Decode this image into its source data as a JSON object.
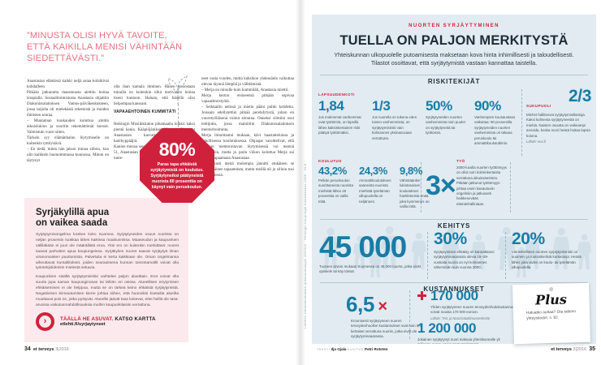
{
  "colors": {
    "accent_red": "#d0213c",
    "accent_teal": "#187ca6",
    "panel_blue": "#e1ebf1",
    "pink_box": "#fbe9ed"
  },
  "left_page": {
    "quote": "”MINUSTA OLISI HYVÄ TAVOITE, ETTÄ KAIKILLA MENISI VÄHINTÄÄN SIEDETTÄVÄSTI.”",
    "columns": {
      "col1": "Anastasian elämässä kaikki neljä asiaa kolahtivat kohdalleen.\n   Pitkään jatkunutta masennusta alettiin hoitaa terapialla. Sosiaalitoimistosta Anastasia ohjattiin Diakonissalaitoksen Vamos-päiväkeskukseen, jossa tarjolla oli mielekästä tekemistä ja muiden ihmisten seuraa.\n   – Muutaman kuukauden kuluttua aloitin aikuislukion ja suoritin tekemättömät kurssit. Valmistuin vuosi sitten.\n   Tärkein syy elämänhalun löytymiselle on kuitenkin tyttöystävä.\n   – En tiedä, miten hän jaksoi minua silloin, kun olin kaikkein huonoimmassa kunnossa. Minun on täytynyt",
      "col2_pre": "olla ihan kamala ihminen. Hänen ansiostaan minulla on kuitenkin ollut motivaatio hoitaa itseni kuntoon. Haluan, että hänellä olisi helpompaa kanssani.",
      "col2_heading": "VAPAAEHTOINEN KUMMITÄTI",
      "col2_post": "Helsingin Musiikkitalon pihamaalla loikkii kaksi pientä kania. Kääpiöjänikset Virna ja Pio ovat Anastasian kasvattamia perhottomia kanihyppääjiä.\n   Kanien menoa seuraa hymyillen Merja Könönen, 51, Anastasian mentori. Merja ja Anastasia ovat tunte-",
      "col3": "neet vasta vuoden, mutta kaksikon yhdessäolo vaikuttaa olevan täynnä lämpöä ja välittämistä.\n   – Merja on minulle kuin kummitäti, Anastasia miettii.\n   Merja kertoo etsineensä pitkään sopivaa vapaaehtoistyötä.\n   – Seikkailin netissä ja mietin pääni puhki kohdetta. Joissain edellytettiin pitkää perehdytystä, johon en vuorotyöläisenä voinut sitoutua. Onneksi silmiini osui lehtijuttu, jossa mainittiin Diakonissalaitoksen mentoritoiminta.\n   Merja ilmoittautui mukaan, kävi haastatteluissa ja pakollisessa koulutuksessa. Ohjaajat varoittelivat, että sopivan mentoroitavan löytymisessä voi mennä pitkäänkin, mutta jo parin viikon kuluttua Merja sai kutsun tapaamaan Anastasiaa.\n   – Varmasti meitä molempia jännitti etukäteen se ensimmäinen tapaaminen, mutta meillä oli jo silloin tosi kiva yhdessä."
    },
    "badge": {
      "value": "80%",
      "text": "Paras tapa ehkäistä syrjäytymistä on koulutus. Syrjäytyneiksi päätyneistä nuorista 80 prosenttia on käynyt vain peruskoulun."
    },
    "sidebar_box": {
      "title": "Syrjäkylillä apua\non vaikea saada",
      "para1": "Syrjäytymisongelma koskee koko Suomea. Syrjäytyneiden osuus nuorista on neljän prosentin luokkaa lähes kaikissa maakunnissa. Maaseudun ja kaupunkien välilläkään ei juuri ole määrällistä eroa. Yksi ero on kuitenkin merkittävä: nuoret saavat parhaiten apua kaupungeissa. Syrjäkylien nuoret saavat syrjäytyä ilman viranomaisten puuttumista. Palveluita ei kerta kaikkiaan ole. Oman ongelmansa aiheuttavat kuntaliitokset, joiden seurauksena kunnan toimintamallit voivat olla työntekijöidenkin mielestä sekavia.",
      "para2": "Kaupunkien sisällä syrjäytymisriski vaihtelee paljon alueittain. Erot voivat olla suuria jopa saman kaupunginosan tai lähiön eri osissa. Alueellisen eriytymisen ehkäiseminen ei ole helppoa, mutta se on tärkeä keino ehkäistä syrjäytymistä. Negatiivisen leimautumisen kierre johtaa siihen, että huonoiksi koetuilta alueilta muuttavat pois ne, jotka pystyvät. Alueelle jäävät taas kokevat, ettei heillä ole tasa-arvoisia vaikutusmahdollisuuksia muihin kaupunkilaisiin verrattuna.",
      "cta_red": "TÄÄLLÄ HE ASUVAT.",
      "cta_dark": "KATSO KARTTA",
      "cta_url": "etlehti.fi/syrjaytyneet"
    },
    "footer": {
      "page": "34",
      "magazine": "et terveys",
      "issue": "3|2016"
    }
  },
  "right_page": {
    "kicker": "NUORTEN SYRJÄYTYMINEN",
    "title": "TUELLA ON PALJON MERKITYSTÄ",
    "subtitle": "Yhteiskunnan ulkopuolelle putoamisesta maksetaan kova hinta inhimillisesti ja taloudellisesti. Tilastot osoittavat, että syrjäytymistä vastaan kannattaa taistella.",
    "credits_vertical": "Lähteet: tilastokeskuksen julkaisuanalyysi 15/2015 · Helsingin kaupungin tilastokeskus 2009 · HLS",
    "riskitekijat": {
      "header": "RISKITEKIJÄT",
      "lapsuudenkoti_label": "LAPSUUDENKOTI",
      "stats": [
        {
          "value": "1,84",
          "text": "Jos molemmat vanhemmat ovat työttömiä, on lapsilla lähes kaksinkertainen riski päätyä työttömäksi."
        },
        {
          "value": "1/3",
          "text": "Jos nuorella on tukena edes toinen vanhemmista, on syrjäytymisriski vain kolmannes yksinasuvaan verrattuna."
        },
        {
          "value": "50%",
          "text": "Syrjäytyneiden nuorten vanhemmista noin puolet on syrjäytyneitä tai työttömiä."
        },
        {
          "value": "90%",
          "text": "Vanhempien koulutustaso vaikuttaa: 90 prosentilla syrjäytyneiden nuorten vanhemmista on takana peruskoulu tai ammattikoulututkinto."
        }
      ],
      "sukupuoli": {
        "label": "SUKUPUOLI",
        "value": "2/3",
        "text": "Miehet hallitsevat syrjäytymistilastoja. Kaksi kolmesta syrjäytyneestä on miehiä. Naisten osuutta on vaikeampi arvioida, koska moni heistä hoitaa lapsia kotona.",
        "source": "Lähde: eva.fi"
      },
      "koulutus": {
        "label": "KOULUTUS",
        "stats": [
          {
            "value": "43,2%",
            "text": "Pelkän peruskoulun suorittaneista nuorista miehistä lähes 45 prosenttia on vailla töitä."
          },
          {
            "value": "24,3%",
            "text": "Ammattikoulutuksen saaneista nuorista miehistä työelämän ulkopuolella on neljännes."
          },
          {
            "value": "9,8%",
            "text": "Vähintäänkin lukiotasoisen koulutuksen hankkineista enää joka kymmenes on vailla töitä."
          }
        ]
      },
      "tyo": {
        "label": "TYÖ",
        "multiplier": "3×",
        "text": "2000-luvulla nuorten työttömyys on ollut noin kolminkertaista verrattuna aikuisväestöön. Pitkään jatkunut työttömyys johtaa usein kasautuviin ongelmiin ja jatkuvasti heikkenevään elämänhallintaan.",
        "grid": {
          "rows": 4,
          "per_row": 6,
          "dark_per_row": 4
        }
      }
    },
    "kehitys": {
      "header": "KEHITYS",
      "stats": [
        {
          "value": "45 000",
          "text": "Tuoreen arvion mukaan Suomessa on 45 000 nuorta, jotka eivät opiskele tai käy töissä."
        },
        {
          "value": "30%",
          "text": "Syrjäytymisen ehkäisy on kannattanut: syrjäytymisvaarassa olevia 16–29-vuotiaita nuoria on nyt kolmannes vähemmän kuin vuonna 2000."
        },
        {
          "value": "20%",
          "text": "Vieraskielisten nuorten syrjäytymisriski on suomen- ja ruotsinkielisiä korkeampi. Heistä lähes joka viides on koulu- tai työelämän ulkopuolella."
        }
      ]
    },
    "kustannukset": {
      "header": "KUSTANNUKSET",
      "multiplier": {
        "value": "6,5",
        "suffix": "×",
        "text": "Kroonisesti syrjäytyneen nuoren terveydenhuollon kustannukset ovat noin 6,5-kertaiset verrattuna nuoriin, jotka eivät ole syrjäytymisvaarassa."
      },
      "health": {
        "value": "170 000",
        "text": "Yhden syrjäytyneen nuoren terveydenhoitokustannukset voivat nousta 170 000 euroon.",
        "source": "Lähde: THL ja Nuorisotutkimusverkosto"
      },
      "total": {
        "value": "1 200 000",
        "text": "Jokainen syrjäytynyt nuori maksaa yhteiskunnalle yli miljoona euroa, arvioi opetusministeriö."
      },
      "note": {
        "logo": "Plus",
        "text": "Haluatko auttaa? Ota talteen yhteystiedot, s. 82."
      }
    },
    "footer": {
      "credit1_label": "TEKSTI",
      "credit1_name": "Ilja Ojala",
      "credit2_label": "KUVITUS",
      "credit2_name": "Petri Rotsten",
      "magazine": "et terveys",
      "issue": "3|2016",
      "page": "35"
    }
  }
}
